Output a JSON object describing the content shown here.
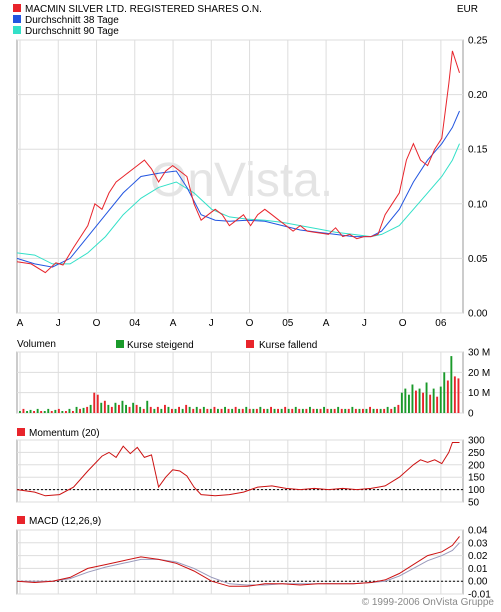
{
  "header": {
    "legend": [
      {
        "label": "MACMIN SILVER LTD. REGISTERED SHARES O.N.",
        "color": "#e8242b"
      },
      {
        "label": "Durchschnitt 38 Tage",
        "color": "#2255e0"
      },
      {
        "label": "Durchschnitt 90 Tage",
        "color": "#33e0c8"
      }
    ],
    "currency": "EUR"
  },
  "watermark": "OnVista.",
  "footer": {
    "copyright": "© 1999-2006 OnVista Gruppe"
  },
  "chart_data": [
    {
      "type": "line",
      "title": "",
      "x_ticks": [
        "A",
        "J",
        "O",
        "04",
        "A",
        "J",
        "O",
        "05",
        "A",
        "J",
        "O",
        "06"
      ],
      "x_range": [
        0,
        126
      ],
      "y_ticks": [
        "0.00",
        "0.05",
        "0.10",
        "0.15",
        "0.20",
        "0.25"
      ],
      "ylim": [
        0,
        0.25
      ],
      "grid": true,
      "series": [
        {
          "name": "MACMIN SILVER LTD. REGISTERED SHARES O.N.",
          "color": "#e8242b",
          "points": [
            [
              0,
              0.047
            ],
            [
              4,
              0.045
            ],
            [
              8,
              0.037
            ],
            [
              11,
              0.046
            ],
            [
              13,
              0.044
            ],
            [
              16,
              0.06
            ],
            [
              18,
              0.07
            ],
            [
              20,
              0.08
            ],
            [
              22,
              0.1
            ],
            [
              24,
              0.095
            ],
            [
              26,
              0.11
            ],
            [
              28,
              0.12
            ],
            [
              30,
              0.125
            ],
            [
              32,
              0.13
            ],
            [
              34,
              0.135
            ],
            [
              36,
              0.14
            ],
            [
              38,
              0.132
            ],
            [
              40,
              0.12
            ],
            [
              42,
              0.13
            ],
            [
              44,
              0.135
            ],
            [
              46,
              0.13
            ],
            [
              48,
              0.125
            ],
            [
              50,
              0.1
            ],
            [
              52,
              0.085
            ],
            [
              54,
              0.09
            ],
            [
              56,
              0.095
            ],
            [
              58,
              0.09
            ],
            [
              60,
              0.08
            ],
            [
              62,
              0.085
            ],
            [
              64,
              0.09
            ],
            [
              66,
              0.08
            ],
            [
              68,
              0.09
            ],
            [
              70,
              0.095
            ],
            [
              72,
              0.09
            ],
            [
              74,
              0.085
            ],
            [
              76,
              0.08
            ],
            [
              78,
              0.075
            ],
            [
              80,
              0.08
            ],
            [
              82,
              0.075
            ],
            [
              84,
              0.074
            ],
            [
              86,
              0.073
            ],
            [
              88,
              0.072
            ],
            [
              90,
              0.078
            ],
            [
              92,
              0.07
            ],
            [
              94,
              0.072
            ],
            [
              96,
              0.068
            ],
            [
              98,
              0.07
            ],
            [
              100,
              0.07
            ],
            [
              102,
              0.072
            ],
            [
              104,
              0.09
            ],
            [
              106,
              0.1
            ],
            [
              108,
              0.11
            ],
            [
              110,
              0.14
            ],
            [
              112,
              0.155
            ],
            [
              114,
              0.14
            ],
            [
              116,
              0.135
            ],
            [
              118,
              0.15
            ],
            [
              120,
              0.16
            ],
            [
              122,
              0.21
            ],
            [
              123,
              0.24
            ],
            [
              125,
              0.22
            ]
          ]
        },
        {
          "name": "Durchschnitt 38 Tage",
          "color": "#2255e0",
          "points": [
            [
              0,
              0.05
            ],
            [
              5,
              0.045
            ],
            [
              10,
              0.042
            ],
            [
              15,
              0.05
            ],
            [
              20,
              0.07
            ],
            [
              25,
              0.09
            ],
            [
              30,
              0.11
            ],
            [
              35,
              0.125
            ],
            [
              40,
              0.128
            ],
            [
              45,
              0.13
            ],
            [
              48,
              0.115
            ],
            [
              52,
              0.09
            ],
            [
              56,
              0.085
            ],
            [
              60,
              0.084
            ],
            [
              65,
              0.085
            ],
            [
              70,
              0.084
            ],
            [
              75,
              0.08
            ],
            [
              80,
              0.076
            ],
            [
              85,
              0.074
            ],
            [
              90,
              0.072
            ],
            [
              95,
              0.07
            ],
            [
              100,
              0.07
            ],
            [
              103,
              0.075
            ],
            [
              108,
              0.095
            ],
            [
              112,
              0.12
            ],
            [
              116,
              0.14
            ],
            [
              120,
              0.155
            ],
            [
              123,
              0.17
            ],
            [
              125,
              0.185
            ]
          ]
        },
        {
          "name": "Durchschnitt 90 Tage",
          "color": "#33e0c8",
          "points": [
            [
              0,
              0.055
            ],
            [
              5,
              0.053
            ],
            [
              10,
              0.045
            ],
            [
              15,
              0.045
            ],
            [
              20,
              0.055
            ],
            [
              25,
              0.07
            ],
            [
              30,
              0.09
            ],
            [
              35,
              0.105
            ],
            [
              40,
              0.115
            ],
            [
              45,
              0.12
            ],
            [
              50,
              0.11
            ],
            [
              55,
              0.095
            ],
            [
              60,
              0.088
            ],
            [
              65,
              0.086
            ],
            [
              70,
              0.085
            ],
            [
              75,
              0.083
            ],
            [
              80,
              0.08
            ],
            [
              85,
              0.077
            ],
            [
              90,
              0.074
            ],
            [
              95,
              0.072
            ],
            [
              100,
              0.07
            ],
            [
              103,
              0.072
            ],
            [
              108,
              0.08
            ],
            [
              112,
              0.095
            ],
            [
              116,
              0.11
            ],
            [
              120,
              0.125
            ],
            [
              123,
              0.14
            ],
            [
              125,
              0.155
            ]
          ]
        }
      ]
    },
    {
      "type": "bar",
      "title": "Volumen",
      "legend": [
        {
          "label": "Kurse steigend",
          "color": "#1a9a2a"
        },
        {
          "label": "Kurse fallend",
          "color": "#e8242b"
        }
      ],
      "y_ticks": [
        "0",
        "10 M",
        "20 M",
        "30 M"
      ],
      "ylim": [
        0,
        30
      ],
      "up_color": "#1a9a2a",
      "down_color": "#e8242b",
      "values": [
        1,
        2,
        1,
        1.5,
        1,
        2,
        1,
        1,
        2,
        1,
        1.5,
        2,
        1,
        1,
        2,
        1,
        3,
        2,
        2.5,
        3,
        4,
        10,
        9,
        5,
        6,
        4,
        3,
        5,
        4,
        6,
        4,
        3,
        5,
        4,
        3,
        2,
        6,
        3,
        2,
        3,
        2,
        4,
        3,
        2,
        2,
        3,
        2,
        4,
        3,
        2,
        3,
        2,
        3,
        2,
        2,
        3,
        2,
        2,
        3,
        2,
        2,
        3,
        2,
        2,
        3,
        2,
        2,
        2,
        3,
        2,
        2,
        3,
        2,
        2,
        2,
        3,
        2,
        2,
        3,
        2,
        2,
        2,
        3,
        2,
        2,
        2,
        3,
        2,
        2,
        2,
        3,
        2,
        2,
        2,
        3,
        2,
        2,
        2,
        2,
        3,
        2,
        2,
        2,
        2,
        3,
        2,
        3,
        4,
        10,
        12,
        9,
        14,
        11,
        12,
        10,
        15,
        9,
        12,
        8,
        13,
        20,
        16,
        28,
        18,
        17
      ],
      "up": [
        1,
        0,
        1,
        1,
        0,
        1,
        0,
        1,
        1,
        0,
        1,
        0,
        1,
        0,
        1,
        0,
        1,
        0,
        1,
        0,
        1,
        0,
        0,
        1,
        0,
        1,
        0,
        1,
        0,
        1,
        1,
        0,
        1,
        0,
        1,
        0,
        1,
        0,
        1,
        0,
        1,
        0,
        1,
        0,
        1,
        0,
        1,
        0,
        1,
        0,
        1,
        0,
        1,
        0,
        1,
        0,
        1,
        0,
        1,
        0,
        1,
        0,
        1,
        0,
        1,
        0,
        1,
        0,
        1,
        0,
        1,
        0,
        1,
        0,
        1,
        0,
        1,
        0,
        1,
        0,
        1,
        0,
        1,
        0,
        1,
        0,
        1,
        0,
        1,
        0,
        1,
        0,
        1,
        0,
        1,
        0,
        1,
        0,
        1,
        0,
        1,
        0,
        1,
        0,
        1,
        0,
        1,
        0,
        1,
        1,
        1,
        1,
        0,
        1,
        0,
        1,
        0,
        1,
        0,
        1,
        1,
        0,
        1,
        0,
        0
      ]
    },
    {
      "type": "line",
      "title": "Momentum (20)",
      "y_ticks": [
        "50",
        "100",
        "150",
        "200",
        "250",
        "300"
      ],
      "ylim": [
        50,
        300
      ],
      "reference": 100,
      "color": "#cc1111",
      "points": [
        [
          0,
          100
        ],
        [
          5,
          90
        ],
        [
          8,
          75
        ],
        [
          12,
          80
        ],
        [
          16,
          110
        ],
        [
          20,
          175
        ],
        [
          24,
          235
        ],
        [
          26,
          250
        ],
        [
          28,
          230
        ],
        [
          30,
          275
        ],
        [
          32,
          245
        ],
        [
          34,
          270
        ],
        [
          36,
          230
        ],
        [
          38,
          240
        ],
        [
          40,
          110
        ],
        [
          42,
          150
        ],
        [
          44,
          180
        ],
        [
          46,
          175
        ],
        [
          48,
          155
        ],
        [
          50,
          110
        ],
        [
          52,
          80
        ],
        [
          56,
          75
        ],
        [
          60,
          80
        ],
        [
          64,
          90
        ],
        [
          68,
          110
        ],
        [
          72,
          115
        ],
        [
          76,
          105
        ],
        [
          80,
          100
        ],
        [
          84,
          105
        ],
        [
          88,
          100
        ],
        [
          92,
          105
        ],
        [
          96,
          100
        ],
        [
          100,
          105
        ],
        [
          104,
          115
        ],
        [
          108,
          150
        ],
        [
          112,
          200
        ],
        [
          114,
          220
        ],
        [
          116,
          210
        ],
        [
          118,
          220
        ],
        [
          120,
          205
        ],
        [
          122,
          250
        ],
        [
          123,
          290
        ],
        [
          125,
          290
        ]
      ]
    },
    {
      "type": "line",
      "title": "MACD (12,26,9)",
      "y_ticks": [
        "-0.01",
        "0.00",
        "0.01",
        "0.02",
        "0.03",
        "0.04"
      ],
      "ylim": [
        -0.01,
        0.04
      ],
      "reference": 0,
      "series": [
        {
          "name": "",
          "color": "#cc1111",
          "points": [
            [
              0,
              0
            ],
            [
              5,
              -0.001
            ],
            [
              10,
              0
            ],
            [
              15,
              0.003
            ],
            [
              20,
              0.01
            ],
            [
              25,
              0.013
            ],
            [
              30,
              0.016
            ],
            [
              35,
              0.019
            ],
            [
              40,
              0.017
            ],
            [
              45,
              0.014
            ],
            [
              50,
              0.008
            ],
            [
              55,
              0
            ],
            [
              60,
              -0.004
            ],
            [
              65,
              -0.004
            ],
            [
              70,
              -0.002
            ],
            [
              75,
              -0.002
            ],
            [
              80,
              -0.003
            ],
            [
              85,
              -0.002
            ],
            [
              90,
              -0.002
            ],
            [
              95,
              -0.002
            ],
            [
              100,
              -0.001
            ],
            [
              104,
              0.001
            ],
            [
              108,
              0.006
            ],
            [
              112,
              0.013
            ],
            [
              116,
              0.02
            ],
            [
              120,
              0.023
            ],
            [
              123,
              0.028
            ],
            [
              125,
              0.035
            ]
          ]
        },
        {
          "name": "",
          "color": "#9999bb",
          "points": [
            [
              0,
              0
            ],
            [
              5,
              0
            ],
            [
              10,
              0
            ],
            [
              15,
              0.002
            ],
            [
              20,
              0.007
            ],
            [
              25,
              0.011
            ],
            [
              30,
              0.014
            ],
            [
              35,
              0.017
            ],
            [
              40,
              0.017
            ],
            [
              45,
              0.015
            ],
            [
              50,
              0.01
            ],
            [
              55,
              0.003
            ],
            [
              60,
              -0.002
            ],
            [
              65,
              -0.003
            ],
            [
              70,
              -0.003
            ],
            [
              75,
              -0.002
            ],
            [
              80,
              -0.002
            ],
            [
              85,
              -0.002
            ],
            [
              90,
              -0.002
            ],
            [
              95,
              -0.002
            ],
            [
              100,
              -0.001
            ],
            [
              104,
              0
            ],
            [
              108,
              0.004
            ],
            [
              112,
              0.01
            ],
            [
              116,
              0.016
            ],
            [
              120,
              0.02
            ],
            [
              123,
              0.024
            ],
            [
              125,
              0.03
            ]
          ]
        }
      ]
    }
  ]
}
